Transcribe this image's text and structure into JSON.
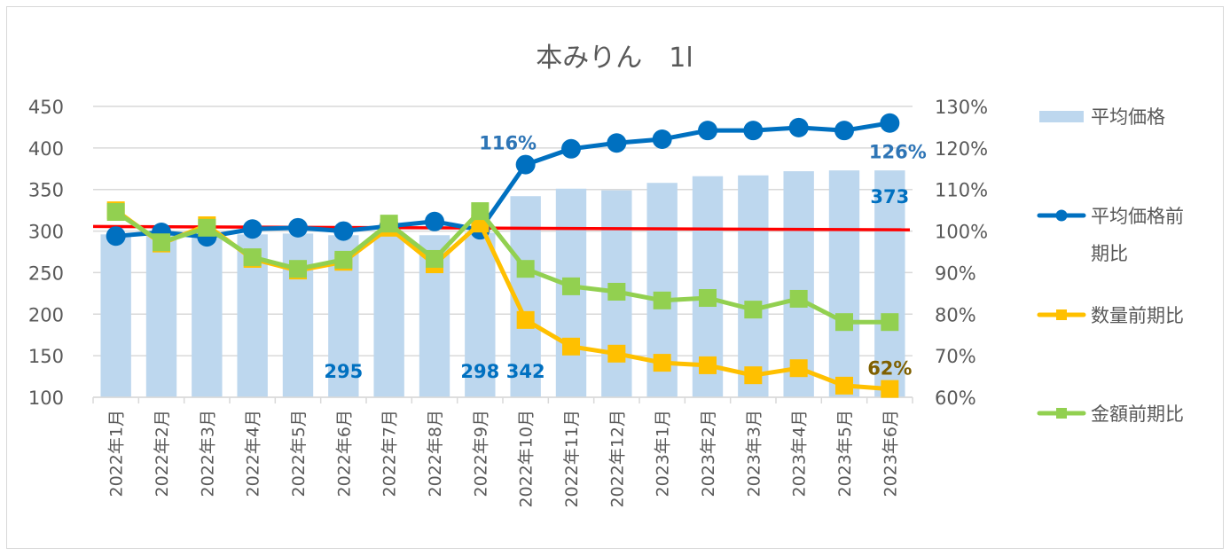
{
  "chart_data": {
    "type": "bar",
    "title": "本みりん　1l",
    "categories": [
      "2022年1月",
      "2022年2月",
      "2022年3月",
      "2022年4月",
      "2022年5月",
      "2022年6月",
      "2022年7月",
      "2022年8月",
      "2022年9月",
      "2022年10月",
      "2022年11月",
      "2022年12月",
      "2023年1月",
      "2023年2月",
      "2023年3月",
      "2023年4月",
      "2023年5月",
      "2023年6月"
    ],
    "primary_axis": {
      "min": 100,
      "max": 450,
      "step": 50,
      "ticks": [
        "100",
        "150",
        "200",
        "250",
        "300",
        "350",
        "400",
        "450"
      ]
    },
    "secondary_axis": {
      "min": 60,
      "max": 130,
      "step": 10,
      "ticks": [
        "60%",
        "70%",
        "80%",
        "90%",
        "100%",
        "110%",
        "120%",
        "130%"
      ]
    },
    "grid": true,
    "legend_position": "right",
    "series": [
      {
        "name": "平均価格",
        "type": "bar",
        "axis": "primary",
        "color": "#bdd7ee",
        "values": [
          296,
          296,
          297,
          296,
          297,
          295,
          298,
          295,
          298,
          342,
          351,
          349,
          358,
          366,
          367,
          372,
          373,
          373
        ]
      },
      {
        "name": "平均価格前期比",
        "type": "line",
        "marker": "circle",
        "axis": "secondary",
        "color": "#0070c0",
        "values": [
          98.8,
          99.7,
          98.6,
          100.5,
          100.8,
          100.0,
          101.2,
          102.3,
          100.3,
          116,
          119.8,
          121.2,
          122.1,
          124.2,
          124.2,
          124.9,
          124.2,
          126
        ]
      },
      {
        "name": "数量前期比",
        "type": "line",
        "marker": "square",
        "axis": "secondary",
        "color": "#ffc000",
        "values": [
          105.0,
          97.0,
          101.4,
          93.3,
          90.5,
          92.6,
          100.8,
          92.0,
          101.8,
          78.6,
          72.2,
          70.5,
          68.3,
          67.7,
          65.3,
          67.0,
          62.8,
          62
        ]
      },
      {
        "name": "金額前期比",
        "type": "line",
        "marker": "square",
        "axis": "secondary",
        "color": "#92d050",
        "values": [
          104.6,
          97.3,
          100.8,
          93.7,
          90.9,
          93.1,
          101.8,
          93.3,
          104.8,
          90.9,
          86.7,
          85.4,
          83.3,
          83.9,
          81.1,
          83.7,
          78.1,
          78.1
        ]
      }
    ],
    "reference_line": {
      "color": "#ff0000",
      "axis": "secondary",
      "start": 101.1,
      "end": 100.3
    },
    "data_labels": [
      {
        "series": "平均価格",
        "index": 5,
        "text": "295",
        "color": "#0070c0"
      },
      {
        "series": "平均価格",
        "index": 8,
        "text": "298",
        "color": "#0070c0"
      },
      {
        "series": "平均価格",
        "index": 9,
        "text": "342",
        "color": "#0070c0"
      },
      {
        "series": "平均価格",
        "index": 17,
        "text": "373",
        "color": "#0070c0"
      },
      {
        "series": "平均価格前期比",
        "index": 9,
        "text": "116%",
        "color": "#2e75b6"
      },
      {
        "series": "平均価格前期比",
        "index": 17,
        "text": "126%",
        "color": "#2e75b6"
      },
      {
        "series": "数量前期比",
        "index": 17,
        "text": "62%",
        "color": "#7f6000"
      }
    ],
    "legend": [
      {
        "label_lines": [
          "平均価格"
        ],
        "symbol": "bar",
        "color": "#bdd7ee"
      },
      {
        "label_lines": [
          "平均価格前",
          "期比"
        ],
        "symbol": "line-circle",
        "color": "#0070c0"
      },
      {
        "label_lines": [
          "数量前期比"
        ],
        "symbol": "line-square",
        "color": "#ffc000"
      },
      {
        "label_lines": [
          "金額前期比"
        ],
        "symbol": "line-square",
        "color": "#92d050"
      }
    ]
  }
}
